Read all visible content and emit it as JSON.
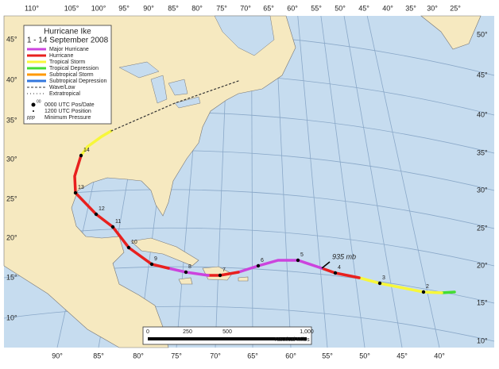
{
  "graticule": {
    "top": [
      "110°",
      "105°",
      "100°",
      "95°",
      "90°",
      "85°",
      "80°",
      "75°",
      "70°",
      "65°",
      "60°",
      "55°",
      "50°",
      "45°",
      "40°",
      "35°",
      "30°",
      "25°"
    ],
    "bottom": [
      "90°",
      "85°",
      "80°",
      "75°",
      "70°",
      "65°",
      "60°",
      "55°",
      "50°",
      "45°",
      "40°"
    ],
    "left": [
      "45°",
      "40°",
      "35°",
      "30°",
      "25°",
      "20°",
      "15°",
      "10°"
    ],
    "right": [
      "50°",
      "45°",
      "40°",
      "35°",
      "30°",
      "25°",
      "20°",
      "15°",
      "10°"
    ]
  },
  "legend": {
    "title": "Hurricane Ike",
    "subtitle": "1 - 14 September 2008",
    "entries": [
      "Major Hurricane",
      "Hurricane",
      "Tropical Storm",
      "Tropical Depression",
      "Subtropical Storm",
      "Subtropical Depression",
      "Wave/Low",
      "Extratropical"
    ],
    "marker_date": "00",
    "daily_position": "0000 UTC Pos/Date",
    "half_day_position": "1200 UTC Position",
    "marker_pressure": "ppp",
    "pressure": "Minimum Pressure"
  },
  "track": {
    "date_labels": [
      "2",
      "3",
      "4",
      "5",
      "6",
      "7",
      "8",
      "9",
      "10",
      "11",
      "12",
      "13",
      "14"
    ],
    "pressure_label": "935 mb"
  },
  "scale_bar": {
    "ticks": [
      "0",
      "250",
      "500",
      "1,000"
    ],
    "unit": "Nautical Miles"
  }
}
